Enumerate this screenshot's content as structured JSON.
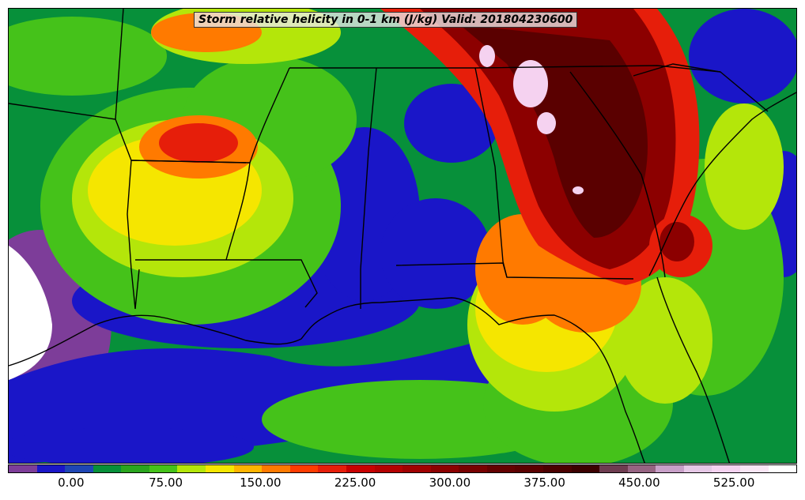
{
  "title": "Storm relative helicity in 0-1 km (J/kg) Valid: 201804230600",
  "map": {
    "background_color": "#07903a",
    "field_colors": {
      "purple": "#7d3d99",
      "blue": "#1a16c8",
      "dark_green": "#07903a",
      "green": "#45c21a",
      "lime": "#b4e60a",
      "yellow": "#f5e600",
      "orange": "#ff7a00",
      "red": "#e61e0a",
      "dark_red": "#8c0000",
      "maroon": "#5a0000",
      "pink": "#f5d2f0"
    },
    "boundary_color": "#000000"
  },
  "colorbar": {
    "colors": [
      "#7d3d99",
      "#1a16c8",
      "#1e46b4",
      "#07903a",
      "#2aa51e",
      "#45c21a",
      "#b4e60a",
      "#f5e600",
      "#ffb400",
      "#ff7a00",
      "#ff3c00",
      "#e61e0a",
      "#c80000",
      "#b40000",
      "#a00000",
      "#8c0000",
      "#780000",
      "#640000",
      "#5a0000",
      "#4b0000",
      "#3c0000",
      "#6e3c50",
      "#966482",
      "#c8a0c8",
      "#e6c8e6",
      "#f5d2f0",
      "#fae6f5",
      "#ffffff"
    ],
    "tick_labels": [
      "0.00",
      "75.00",
      "150.00",
      "225.00",
      "300.00",
      "375.00",
      "450.00",
      "525.00"
    ],
    "ticks": [
      0,
      75,
      150,
      225,
      300,
      375,
      450,
      525
    ],
    "range": [
      -50,
      575
    ]
  }
}
